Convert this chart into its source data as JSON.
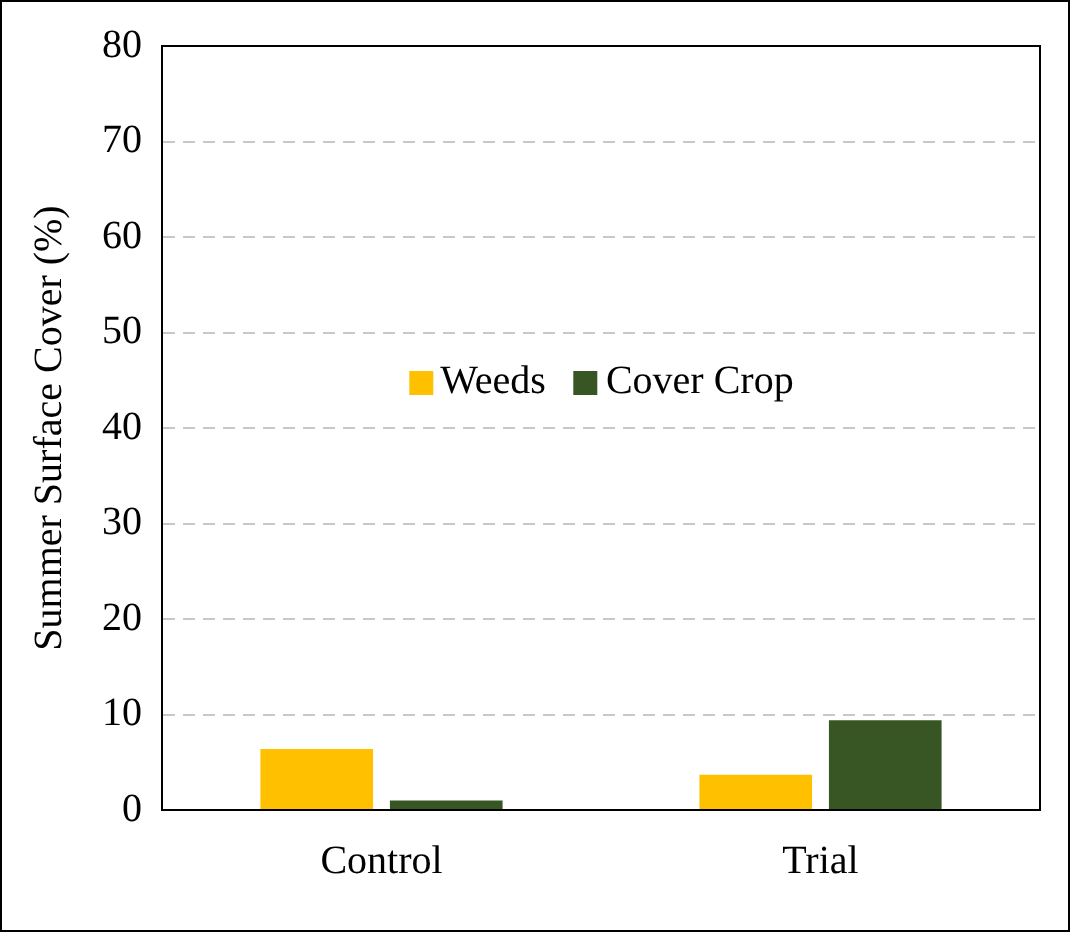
{
  "chart_data": {
    "type": "bar",
    "ylabel": "Summer Surface Cover (%)",
    "categories": [
      "Control",
      "Trial"
    ],
    "series": [
      {
        "name": "Weeds",
        "color": "#ffc000",
        "values": [
          6.4,
          3.7
        ]
      },
      {
        "name": "Cover Crop",
        "color": "#375623",
        "values": [
          1.0,
          9.4
        ]
      }
    ],
    "ylim": [
      0,
      80
    ],
    "yticks": [
      0,
      10,
      20,
      30,
      40,
      50,
      60,
      70,
      80
    ],
    "grid": "y",
    "legend": "center"
  }
}
